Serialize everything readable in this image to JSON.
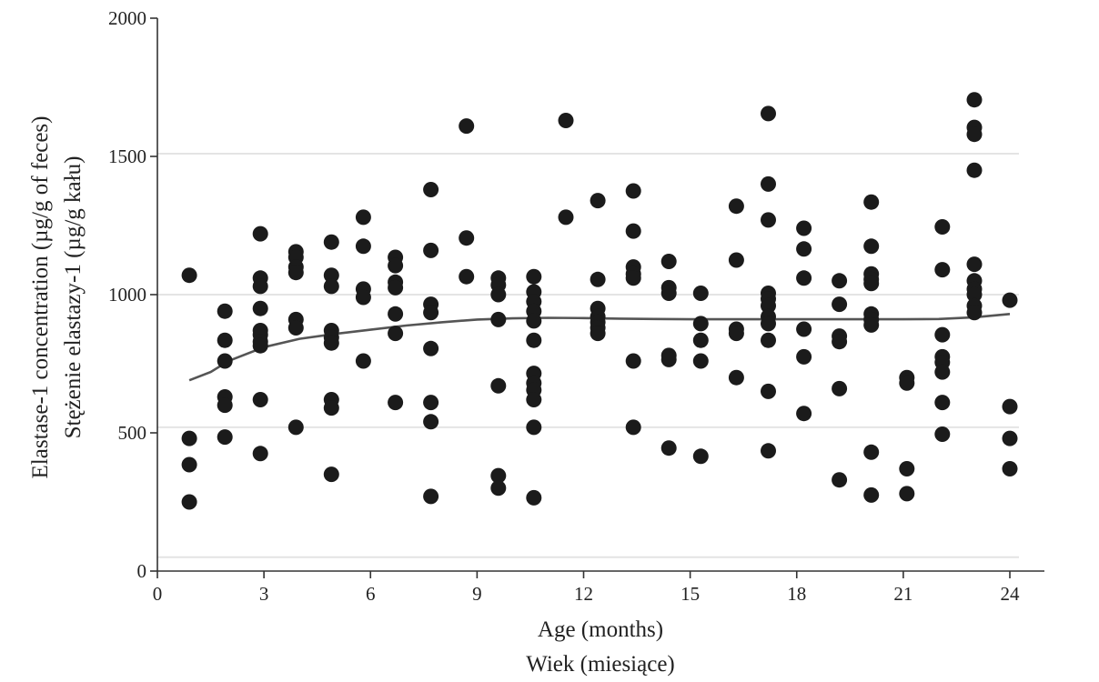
{
  "chart_data": {
    "type": "scatter",
    "xlabel": [
      "Age (months)",
      "Wiek (miesiące)"
    ],
    "ylabel": [
      "Elastase-1 concentration  (µg/g of feces)",
      "Stężenie elastazy-1 (µg/g kału)"
    ],
    "xlim": [
      0,
      25
    ],
    "ylim": [
      0,
      2000
    ],
    "x_ticks": [
      0,
      3,
      6,
      9,
      12,
      15,
      18,
      21,
      24
    ],
    "y_ticks": [
      0,
      500,
      1000,
      1500,
      2000
    ],
    "grid": {
      "y": [
        50,
        520,
        1000,
        1510
      ],
      "color": "#e4e4e4"
    },
    "marker_color": "#1b1b1b",
    "line_color": "#555555",
    "points": [
      [
        0.9,
        1070
      ],
      [
        0.9,
        480
      ],
      [
        0.9,
        385
      ],
      [
        0.9,
        250
      ],
      [
        1.9,
        940
      ],
      [
        1.9,
        835
      ],
      [
        1.9,
        760
      ],
      [
        1.9,
        630
      ],
      [
        1.9,
        600
      ],
      [
        1.9,
        485
      ],
      [
        2.9,
        1220
      ],
      [
        2.9,
        1060
      ],
      [
        2.9,
        1030
      ],
      [
        2.9,
        950
      ],
      [
        2.9,
        870
      ],
      [
        2.9,
        855
      ],
      [
        2.9,
        830
      ],
      [
        2.9,
        815
      ],
      [
        2.9,
        620
      ],
      [
        2.9,
        425
      ],
      [
        3.9,
        1155
      ],
      [
        3.9,
        1135
      ],
      [
        3.9,
        1100
      ],
      [
        3.9,
        1080
      ],
      [
        3.9,
        910
      ],
      [
        3.9,
        880
      ],
      [
        3.9,
        520
      ],
      [
        4.9,
        1190
      ],
      [
        4.9,
        1070
      ],
      [
        4.9,
        1030
      ],
      [
        4.9,
        870
      ],
      [
        4.9,
        845
      ],
      [
        4.9,
        825
      ],
      [
        4.9,
        620
      ],
      [
        4.9,
        590
      ],
      [
        4.9,
        350
      ],
      [
        5.8,
        1280
      ],
      [
        5.8,
        1175
      ],
      [
        5.8,
        1020
      ],
      [
        5.8,
        990
      ],
      [
        5.8,
        760
      ],
      [
        6.7,
        1135
      ],
      [
        6.7,
        1105
      ],
      [
        6.7,
        1045
      ],
      [
        6.7,
        1025
      ],
      [
        6.7,
        930
      ],
      [
        6.7,
        860
      ],
      [
        6.7,
        610
      ],
      [
        7.7,
        1380
      ],
      [
        7.7,
        1160
      ],
      [
        7.7,
        965
      ],
      [
        7.7,
        935
      ],
      [
        7.7,
        805
      ],
      [
        7.7,
        610
      ],
      [
        7.7,
        540
      ],
      [
        7.7,
        270
      ],
      [
        8.7,
        1610
      ],
      [
        8.7,
        1205
      ],
      [
        8.7,
        1065
      ],
      [
        9.6,
        1060
      ],
      [
        9.6,
        1035
      ],
      [
        9.6,
        1000
      ],
      [
        9.6,
        910
      ],
      [
        9.6,
        670
      ],
      [
        9.6,
        345
      ],
      [
        9.6,
        300
      ],
      [
        10.6,
        1065
      ],
      [
        10.6,
        1010
      ],
      [
        10.6,
        975
      ],
      [
        10.6,
        940
      ],
      [
        10.6,
        905
      ],
      [
        10.6,
        835
      ],
      [
        10.6,
        715
      ],
      [
        10.6,
        680
      ],
      [
        10.6,
        655
      ],
      [
        10.6,
        620
      ],
      [
        10.6,
        520
      ],
      [
        10.6,
        265
      ],
      [
        11.5,
        1630
      ],
      [
        11.5,
        1280
      ],
      [
        12.4,
        1340
      ],
      [
        12.4,
        1055
      ],
      [
        12.4,
        950
      ],
      [
        12.4,
        920
      ],
      [
        12.4,
        900
      ],
      [
        12.4,
        880
      ],
      [
        12.4,
        860
      ],
      [
        13.4,
        1375
      ],
      [
        13.4,
        1230
      ],
      [
        13.4,
        1100
      ],
      [
        13.4,
        1075
      ],
      [
        13.4,
        1060
      ],
      [
        13.4,
        760
      ],
      [
        13.4,
        520
      ],
      [
        14.4,
        1120
      ],
      [
        14.4,
        1025
      ],
      [
        14.4,
        1005
      ],
      [
        14.4,
        780
      ],
      [
        14.4,
        765
      ],
      [
        14.4,
        445
      ],
      [
        15.3,
        1005
      ],
      [
        15.3,
        895
      ],
      [
        15.3,
        835
      ],
      [
        15.3,
        760
      ],
      [
        15.3,
        415
      ],
      [
        16.3,
        1320
      ],
      [
        16.3,
        1125
      ],
      [
        16.3,
        875
      ],
      [
        16.3,
        860
      ],
      [
        16.3,
        700
      ],
      [
        17.2,
        1655
      ],
      [
        17.2,
        1400
      ],
      [
        17.2,
        1270
      ],
      [
        17.2,
        1005
      ],
      [
        17.2,
        985
      ],
      [
        17.2,
        960
      ],
      [
        17.2,
        920
      ],
      [
        17.2,
        895
      ],
      [
        17.2,
        835
      ],
      [
        17.2,
        650
      ],
      [
        17.2,
        435
      ],
      [
        18.2,
        1240
      ],
      [
        18.2,
        1165
      ],
      [
        18.2,
        1060
      ],
      [
        18.2,
        875
      ],
      [
        18.2,
        775
      ],
      [
        18.2,
        570
      ],
      [
        19.2,
        1050
      ],
      [
        19.2,
        965
      ],
      [
        19.2,
        850
      ],
      [
        19.2,
        830
      ],
      [
        19.2,
        660
      ],
      [
        19.2,
        330
      ],
      [
        20.1,
        1335
      ],
      [
        20.1,
        1175
      ],
      [
        20.1,
        1075
      ],
      [
        20.1,
        1055
      ],
      [
        20.1,
        1040
      ],
      [
        20.1,
        930
      ],
      [
        20.1,
        910
      ],
      [
        20.1,
        890
      ],
      [
        20.1,
        430
      ],
      [
        20.1,
        275
      ],
      [
        21.1,
        700
      ],
      [
        21.1,
        680
      ],
      [
        21.1,
        370
      ],
      [
        21.1,
        280
      ],
      [
        22.1,
        1245
      ],
      [
        22.1,
        1090
      ],
      [
        22.1,
        855
      ],
      [
        22.1,
        775
      ],
      [
        22.1,
        755
      ],
      [
        22.1,
        720
      ],
      [
        22.1,
        610
      ],
      [
        22.1,
        495
      ],
      [
        23.0,
        1705
      ],
      [
        23.0,
        1605
      ],
      [
        23.0,
        1580
      ],
      [
        23.0,
        1450
      ],
      [
        23.0,
        1110
      ],
      [
        23.0,
        1050
      ],
      [
        23.0,
        1020
      ],
      [
        23.0,
        1000
      ],
      [
        23.0,
        960
      ],
      [
        23.0,
        935
      ],
      [
        24.0,
        980
      ],
      [
        24.0,
        595
      ],
      [
        24.0,
        480
      ],
      [
        24.0,
        370
      ]
    ],
    "trend_line": [
      [
        0.9,
        690
      ],
      [
        1.5,
        720
      ],
      [
        2,
        760
      ],
      [
        3,
        810
      ],
      [
        4,
        840
      ],
      [
        5,
        858
      ],
      [
        6,
        873
      ],
      [
        7,
        888
      ],
      [
        8,
        900
      ],
      [
        9,
        910
      ],
      [
        10,
        914
      ],
      [
        11,
        916
      ],
      [
        12,
        915
      ],
      [
        13,
        913
      ],
      [
        14,
        912
      ],
      [
        15,
        911
      ],
      [
        16,
        911
      ],
      [
        17,
        911
      ],
      [
        18,
        911
      ],
      [
        19,
        911
      ],
      [
        20,
        911
      ],
      [
        21,
        911
      ],
      [
        22,
        912
      ],
      [
        23,
        918
      ],
      [
        24,
        930
      ]
    ]
  }
}
